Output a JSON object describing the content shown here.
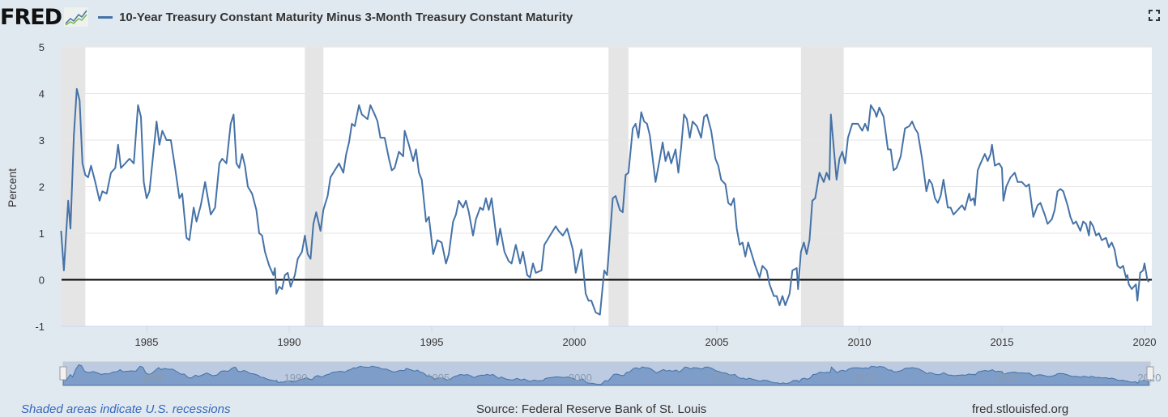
{
  "header": {
    "logo": "FRED",
    "title": "10-Year Treasury Constant Maturity Minus 3-Month Treasury Constant Maturity",
    "series_color": "#4572a7"
  },
  "footer": {
    "recessions": "Shaded areas indicate U.S. recessions",
    "source": "Source: Federal Reserve Bank of St. Louis",
    "site": "fred.stlouisfed.org"
  },
  "chart_data": {
    "type": "line",
    "title": "10-Year Treasury Constant Maturity Minus 3-Month Treasury Constant Maturity",
    "ylabel": "Percent",
    "xlabel": "",
    "ylim": [
      -1,
      5
    ],
    "xlim": [
      1982,
      2020.25
    ],
    "yticks": [
      "5",
      "4",
      "3",
      "2",
      "1",
      "0",
      "-1"
    ],
    "xticks": [
      "1985",
      "1990",
      "1995",
      "2000",
      "2005",
      "2010",
      "2015",
      "2020"
    ],
    "grid": true,
    "zero_line": true,
    "legend": "top-left",
    "recessions": [
      [
        1982.0,
        1982.85
      ],
      [
        1990.55,
        1991.2
      ],
      [
        2001.2,
        2001.9
      ],
      [
        2007.95,
        2009.45
      ]
    ],
    "recession_color": "#e5e5e5",
    "x": [
      1982.0,
      1982.1,
      1982.25,
      1982.33,
      1982.45,
      1982.55,
      1982.65,
      1982.75,
      1982.85,
      1982.95,
      1983.05,
      1983.2,
      1983.35,
      1983.45,
      1983.6,
      1983.75,
      1983.9,
      1984.0,
      1984.1,
      1984.25,
      1984.4,
      1984.55,
      1984.7,
      1984.8,
      1984.9,
      1985.0,
      1985.1,
      1985.25,
      1985.35,
      1985.45,
      1985.55,
      1985.7,
      1985.85,
      1986.0,
      1986.15,
      1986.25,
      1986.4,
      1986.5,
      1986.65,
      1986.75,
      1986.9,
      1987.05,
      1987.15,
      1987.25,
      1987.4,
      1987.55,
      1987.65,
      1987.8,
      1987.95,
      1988.05,
      1988.15,
      1988.25,
      1988.35,
      1988.45,
      1988.55,
      1988.7,
      1988.85,
      1988.95,
      1989.05,
      1989.15,
      1989.3,
      1989.45,
      1989.5,
      1989.55,
      1989.65,
      1989.75,
      1989.85,
      1989.95,
      1990.05,
      1990.2,
      1990.3,
      1990.45,
      1990.55,
      1990.65,
      1990.75,
      1990.85,
      1990.95,
      1991.1,
      1991.2,
      1991.35,
      1991.45,
      1991.6,
      1991.75,
      1991.9,
      1992.0,
      1992.1,
      1992.2,
      1992.3,
      1992.45,
      1992.55,
      1992.75,
      1992.85,
      1993.0,
      1993.1,
      1993.2,
      1993.35,
      1993.5,
      1993.6,
      1993.7,
      1993.85,
      1994.0,
      1994.05,
      1994.2,
      1994.35,
      1994.45,
      1994.55,
      1994.65,
      1994.8,
      1994.9,
      1995.05,
      1995.2,
      1995.35,
      1995.5,
      1995.6,
      1995.75,
      1995.85,
      1995.95,
      1996.1,
      1996.2,
      1996.3,
      1996.45,
      1996.55,
      1996.7,
      1996.8,
      1996.9,
      1997.0,
      1997.1,
      1997.3,
      1997.4,
      1997.55,
      1997.7,
      1997.8,
      1997.95,
      1998.1,
      1998.2,
      1998.35,
      1998.45,
      1998.55,
      1998.65,
      1998.85,
      1998.95,
      1999.05,
      1999.2,
      1999.35,
      1999.45,
      1999.6,
      1999.75,
      1999.95,
      2000.05,
      2000.25,
      2000.4,
      2000.5,
      2000.6,
      2000.75,
      2000.9,
      2001.05,
      2001.15,
      2001.35,
      2001.45,
      2001.6,
      2001.7,
      2001.8,
      2001.9,
      2002.05,
      2002.15,
      2002.25,
      2002.35,
      2002.45,
      2002.55,
      2002.65,
      2002.85,
      2003.0,
      2003.1,
      2003.2,
      2003.3,
      2003.4,
      2003.55,
      2003.65,
      2003.75,
      2003.85,
      2003.95,
      2004.05,
      2004.15,
      2004.3,
      2004.45,
      2004.55,
      2004.65,
      2004.8,
      2004.95,
      2005.05,
      2005.15,
      2005.3,
      2005.4,
      2005.5,
      2005.6,
      2005.7,
      2005.8,
      2005.9,
      2006.0,
      2006.1,
      2006.2,
      2006.35,
      2006.5,
      2006.6,
      2006.75,
      2006.85,
      2007.0,
      2007.1,
      2007.2,
      2007.3,
      2007.4,
      2007.55,
      2007.65,
      2007.8,
      2007.85,
      2007.95,
      2008.05,
      2008.15,
      2008.25,
      2008.35,
      2008.45,
      2008.6,
      2008.75,
      2008.85,
      2008.95,
      2009.0,
      2009.2,
      2009.3,
      2009.4,
      2009.5,
      2009.6,
      2009.75,
      2009.95,
      2010.1,
      2010.2,
      2010.3,
      2010.4,
      2010.55,
      2010.6,
      2010.7,
      2010.85,
      2011.0,
      2011.1,
      2011.2,
      2011.3,
      2011.45,
      2011.6,
      2011.75,
      2011.85,
      2011.95,
      2012.05,
      2012.2,
      2012.35,
      2012.45,
      2012.55,
      2012.65,
      2012.75,
      2012.85,
      2012.95,
      2013.1,
      2013.2,
      2013.3,
      2013.45,
      2013.6,
      2013.7,
      2013.85,
      2013.9,
      2014.0,
      2014.05,
      2014.15,
      2014.25,
      2014.4,
      2014.5,
      2014.6,
      2014.65,
      2014.75,
      2014.9,
      2015.0,
      2015.05,
      2015.15,
      2015.3,
      2015.45,
      2015.55,
      2015.7,
      2015.85,
      2015.95,
      2016.1,
      2016.25,
      2016.35,
      2016.5,
      2016.6,
      2016.75,
      2016.85,
      2016.95,
      2017.05,
      2017.15,
      2017.3,
      2017.4,
      2017.5,
      2017.6,
      2017.75,
      2017.85,
      2017.95,
      2018.05,
      2018.1,
      2018.2,
      2018.3,
      2018.4,
      2018.5,
      2018.65,
      2018.75,
      2018.85,
      2018.95,
      2019.05,
      2019.15,
      2019.25,
      2019.35,
      2019.4,
      2019.45,
      2019.55,
      2019.7,
      2019.75,
      2019.85,
      2019.95,
      2020.0,
      2020.1,
      2020.15
    ],
    "y": [
      1.05,
      0.2,
      1.7,
      1.1,
      3.1,
      4.1,
      3.85,
      2.5,
      2.25,
      2.2,
      2.45,
      2.1,
      1.7,
      1.9,
      1.85,
      2.3,
      2.4,
      2.9,
      2.4,
      2.5,
      2.6,
      2.5,
      3.75,
      3.5,
      2.1,
      1.75,
      1.9,
      2.8,
      3.4,
      2.9,
      3.2,
      3.0,
      3.0,
      2.4,
      1.75,
      1.85,
      0.9,
      0.85,
      1.55,
      1.25,
      1.6,
      2.1,
      1.75,
      1.4,
      1.55,
      2.5,
      2.6,
      2.5,
      3.35,
      3.55,
      2.5,
      2.4,
      2.7,
      2.45,
      2.0,
      1.85,
      1.5,
      1.0,
      0.95,
      0.6,
      0.3,
      0.1,
      0.25,
      -0.3,
      -0.15,
      -0.2,
      0.1,
      0.15,
      -0.15,
      0.1,
      0.45,
      0.6,
      0.95,
      0.55,
      0.45,
      1.2,
      1.45,
      1.05,
      1.5,
      1.8,
      2.2,
      2.35,
      2.5,
      2.3,
      2.7,
      2.95,
      3.35,
      3.3,
      3.75,
      3.55,
      3.45,
      3.75,
      3.55,
      3.4,
      3.05,
      3.05,
      2.6,
      2.35,
      2.4,
      2.75,
      2.65,
      3.2,
      2.9,
      2.55,
      2.8,
      2.3,
      2.15,
      1.25,
      1.35,
      0.55,
      0.85,
      0.8,
      0.35,
      0.55,
      1.25,
      1.4,
      1.7,
      1.55,
      1.7,
      1.45,
      0.95,
      1.3,
      1.55,
      1.5,
      1.75,
      1.5,
      1.75,
      0.75,
      1.1,
      0.6,
      0.4,
      0.35,
      0.75,
      0.35,
      0.6,
      0.1,
      0.05,
      0.35,
      0.15,
      0.2,
      0.75,
      0.85,
      1.0,
      1.15,
      1.05,
      0.95,
      1.1,
      0.65,
      0.15,
      0.65,
      -0.3,
      -0.45,
      -0.45,
      -0.7,
      -0.75,
      0.2,
      0.1,
      1.75,
      1.8,
      1.5,
      1.45,
      2.25,
      2.3,
      3.25,
      3.35,
      3.05,
      3.6,
      3.4,
      3.35,
      3.1,
      2.1,
      2.6,
      2.95,
      2.55,
      2.75,
      2.5,
      2.8,
      2.3,
      2.85,
      3.55,
      3.45,
      3.05,
      3.4,
      3.3,
      3.05,
      3.5,
      3.55,
      3.2,
      2.6,
      2.45,
      2.15,
      2.05,
      1.65,
      1.6,
      1.75,
      1.1,
      0.75,
      0.8,
      0.5,
      0.8,
      0.6,
      0.3,
      0.05,
      0.3,
      0.2,
      -0.1,
      -0.35,
      -0.35,
      -0.55,
      -0.35,
      -0.55,
      -0.3,
      0.2,
      0.25,
      -0.2,
      0.6,
      0.8,
      0.55,
      0.85,
      1.7,
      1.75,
      2.3,
      2.1,
      2.3,
      2.15,
      3.55,
      2.15,
      2.6,
      2.75,
      2.5,
      3.05,
      3.35,
      3.35,
      3.2,
      3.35,
      3.2,
      3.75,
      3.6,
      3.5,
      3.7,
      3.5,
      2.8,
      2.8,
      2.35,
      2.4,
      2.65,
      3.25,
      3.3,
      3.4,
      3.25,
      3.15,
      2.6,
      1.9,
      2.15,
      2.05,
      1.75,
      1.65,
      1.8,
      2.15,
      1.55,
      1.55,
      1.4,
      1.5,
      1.6,
      1.5,
      1.85,
      1.7,
      1.75,
      1.6,
      2.35,
      2.5,
      2.7,
      2.55,
      2.7,
      2.9,
      2.45,
      2.5,
      2.4,
      1.7,
      2.0,
      2.2,
      2.3,
      2.1,
      2.1,
      2.0,
      2.05,
      1.35,
      1.6,
      1.65,
      1.4,
      1.2,
      1.3,
      1.5,
      1.9,
      1.95,
      1.9,
      1.6,
      1.35,
      1.2,
      1.25,
      1.05,
      1.25,
      1.2,
      0.95,
      1.25,
      1.15,
      0.95,
      1.0,
      0.85,
      0.9,
      0.7,
      0.8,
      0.65,
      0.3,
      0.25,
      0.3,
      0.05,
      0.1,
      -0.1,
      -0.2,
      -0.1,
      -0.45,
      0.15,
      0.2,
      0.35,
      0.0,
      -0.05
    ]
  }
}
